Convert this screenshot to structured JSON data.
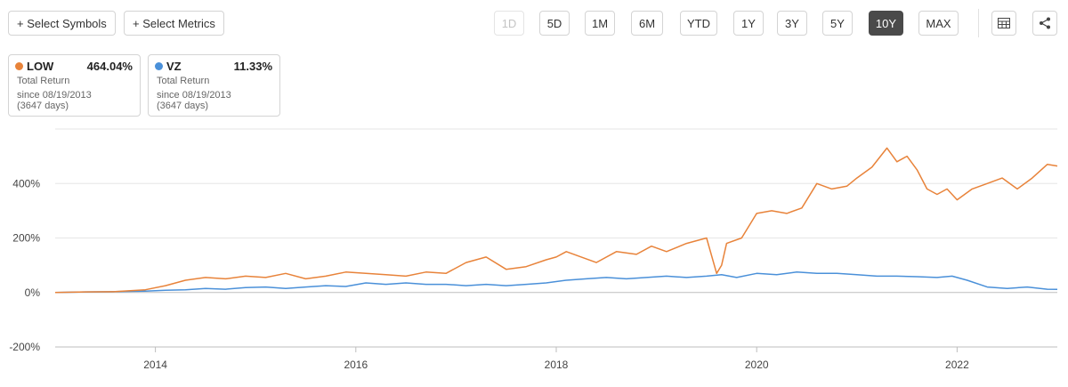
{
  "toolbar": {
    "select_symbols": "+ Select Symbols",
    "select_metrics": "+ Select Metrics",
    "ranges": [
      "1D",
      "5D",
      "1M",
      "6M",
      "YTD",
      "1Y",
      "3Y",
      "5Y",
      "10Y",
      "MAX"
    ],
    "active_range": "10Y",
    "disabled_range": "1D"
  },
  "legend": [
    {
      "symbol": "LOW",
      "value": "464.04%",
      "metric": "Total Return",
      "since": "since 08/19/2013",
      "days": "(3647 days)",
      "color": "#e8833a"
    },
    {
      "symbol": "VZ",
      "value": "11.33%",
      "metric": "Total Return",
      "since": "since 08/19/2013",
      "days": "(3647 days)",
      "color": "#4a90d9"
    }
  ],
  "chart_data": {
    "type": "line",
    "title": "",
    "xlabel": "",
    "ylabel": "",
    "y_tick_labels": [
      "-200%",
      "0%",
      "200%",
      "400%"
    ],
    "y_ticks": [
      -200,
      0,
      200,
      400
    ],
    "ylim": [
      -200,
      600
    ],
    "x_tick_labels": [
      "2014",
      "2016",
      "2018",
      "2020",
      "2022"
    ],
    "x_ticks": [
      2014,
      2016,
      2018,
      2020,
      2022
    ],
    "xlim": [
      2013.0,
      2023.0
    ],
    "grid": true,
    "series": [
      {
        "name": "LOW",
        "color": "#e8833a",
        "x": [
          2013.0,
          2013.3,
          2013.6,
          2013.9,
          2014.1,
          2014.3,
          2014.5,
          2014.7,
          2014.9,
          2015.1,
          2015.3,
          2015.5,
          2015.7,
          2015.9,
          2016.1,
          2016.3,
          2016.5,
          2016.7,
          2016.9,
          2017.1,
          2017.3,
          2017.5,
          2017.7,
          2017.9,
          2018.0,
          2018.1,
          2018.25,
          2018.4,
          2018.6,
          2018.8,
          2018.95,
          2019.1,
          2019.3,
          2019.5,
          2019.6,
          2019.65,
          2019.7,
          2019.85,
          2020.0,
          2020.15,
          2020.3,
          2020.45,
          2020.6,
          2020.75,
          2020.9,
          2021.0,
          2021.15,
          2021.3,
          2021.4,
          2021.5,
          2021.6,
          2021.7,
          2021.8,
          2021.9,
          2022.0,
          2022.15,
          2022.3,
          2022.45,
          2022.6,
          2022.75,
          2022.9,
          2023.0
        ],
        "y": [
          0,
          2,
          3,
          10,
          25,
          45,
          55,
          50,
          60,
          55,
          70,
          50,
          60,
          75,
          70,
          65,
          60,
          75,
          70,
          110,
          130,
          85,
          95,
          120,
          130,
          150,
          130,
          110,
          150,
          140,
          170,
          150,
          180,
          200,
          70,
          100,
          180,
          200,
          290,
          300,
          290,
          310,
          400,
          380,
          390,
          420,
          460,
          530,
          480,
          500,
          450,
          380,
          360,
          380,
          340,
          380,
          400,
          420,
          380,
          420,
          470,
          464.04
        ]
      },
      {
        "name": "VZ",
        "color": "#4a90d9",
        "x": [
          2013.0,
          2013.3,
          2013.6,
          2013.9,
          2014.1,
          2014.3,
          2014.5,
          2014.7,
          2014.9,
          2015.1,
          2015.3,
          2015.5,
          2015.7,
          2015.9,
          2016.1,
          2016.3,
          2016.5,
          2016.7,
          2016.9,
          2017.1,
          2017.3,
          2017.5,
          2017.7,
          2017.9,
          2018.1,
          2018.3,
          2018.5,
          2018.7,
          2018.9,
          2019.1,
          2019.3,
          2019.5,
          2019.65,
          2019.8,
          2020.0,
          2020.2,
          2020.4,
          2020.6,
          2020.8,
          2021.0,
          2021.2,
          2021.4,
          2021.6,
          2021.8,
          2021.95,
          2022.1,
          2022.3,
          2022.5,
          2022.7,
          2022.9,
          2023.0
        ],
        "y": [
          0,
          2,
          3,
          5,
          8,
          10,
          15,
          12,
          18,
          20,
          15,
          20,
          25,
          22,
          35,
          30,
          35,
          30,
          30,
          25,
          30,
          25,
          30,
          35,
          45,
          50,
          55,
          50,
          55,
          60,
          55,
          60,
          65,
          55,
          70,
          65,
          75,
          70,
          70,
          65,
          60,
          60,
          58,
          55,
          60,
          45,
          20,
          15,
          20,
          12,
          11.33
        ]
      }
    ]
  }
}
